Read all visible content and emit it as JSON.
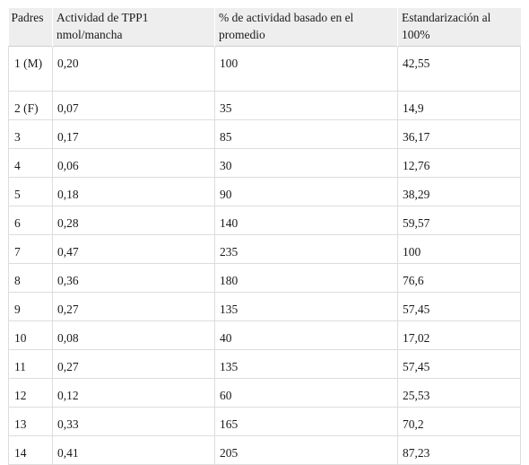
{
  "table": {
    "headers": [
      "Padres",
      "Actividad de TPP1 nmol/mancha",
      "% de actividad basado en el promedio",
      "Estandarización al 100%"
    ],
    "rows": [
      [
        "1 (M)",
        "0,20",
        "100",
        "42,55"
      ],
      [
        "2 (F)",
        "0,07",
        "35",
        "14,9"
      ],
      [
        "3",
        "0,17",
        "85",
        "36,17"
      ],
      [
        "4",
        "0,06",
        "30",
        "12,76"
      ],
      [
        "5",
        "0,18",
        "90",
        "38,29"
      ],
      [
        "6",
        "0,28",
        "140",
        "59,57"
      ],
      [
        "7",
        "0,47",
        "235",
        "100"
      ],
      [
        "8",
        "0,36",
        "180",
        "76,6"
      ],
      [
        "9",
        "0,27",
        "135",
        "57,45"
      ],
      [
        "10",
        "0,08",
        "40",
        "17,02"
      ],
      [
        "11",
        "0,27",
        "135",
        "57,45"
      ],
      [
        "12",
        "0,12",
        "60",
        "25,53"
      ],
      [
        "13",
        "0,33",
        "165",
        "70,2"
      ],
      [
        "14",
        "0,41",
        "205",
        "87,23"
      ]
    ]
  }
}
